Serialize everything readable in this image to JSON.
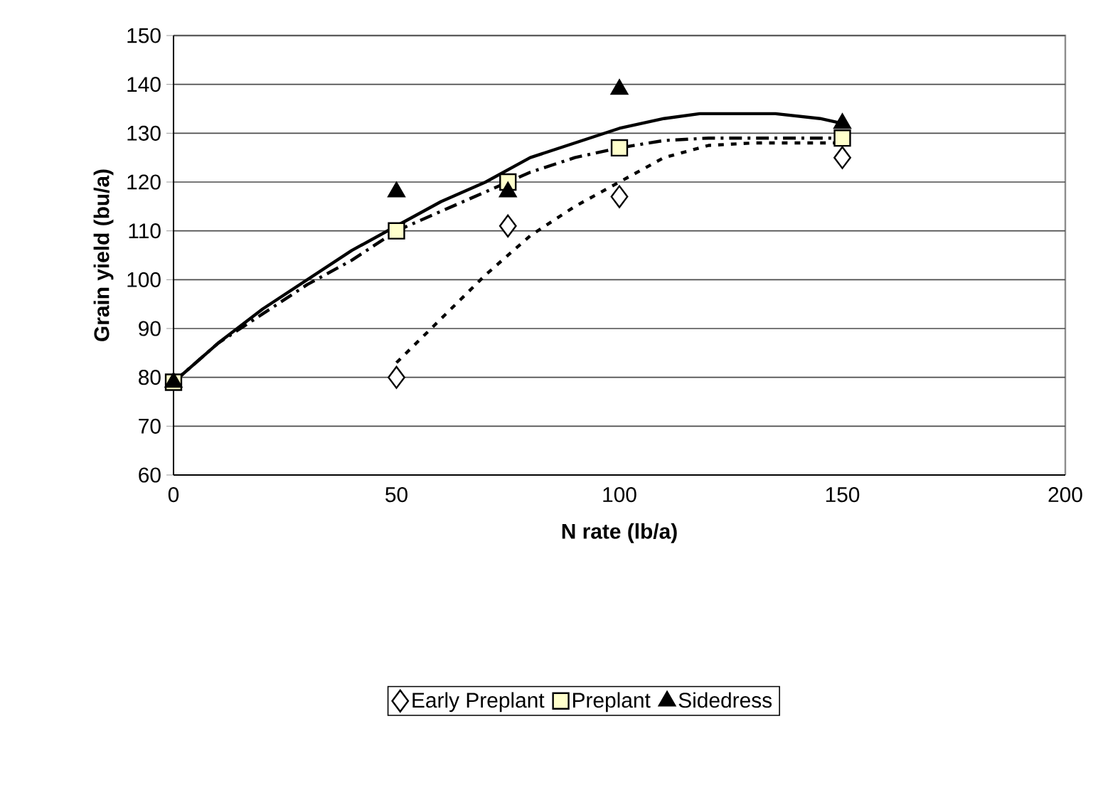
{
  "chart_data": {
    "type": "scatter",
    "xlabel": "N rate (lb/a)",
    "ylabel": "Grain yield (bu/a)",
    "xlim": [
      0,
      200
    ],
    "xticks": [
      0,
      50,
      100,
      150,
      200
    ],
    "ylim": [
      60,
      150
    ],
    "yticks": [
      60,
      70,
      80,
      90,
      100,
      110,
      120,
      130,
      140,
      150
    ],
    "grid": "y",
    "legend": "bottom",
    "series": [
      {
        "name": "Early Preplant",
        "marker": "diamond",
        "color": "#ffffff",
        "x": [
          50,
          75,
          100,
          150
        ],
        "values": [
          80,
          111,
          117,
          125
        ]
      },
      {
        "name": "Preplant",
        "marker": "square",
        "color": "#ffffcc",
        "x": [
          0,
          50,
          75,
          100,
          150
        ],
        "values": [
          79,
          110,
          120,
          127,
          129
        ]
      },
      {
        "name": "Sidedress",
        "marker": "triangle",
        "color": "#000000",
        "x": [
          0,
          50,
          75,
          100,
          150
        ],
        "values": [
          79,
          118,
          118,
          139,
          132
        ]
      },
      {
        "type": "line",
        "marker": "none",
        "line_style": "dotted",
        "color": "#000000",
        "x": [
          50,
          60,
          70,
          80,
          90,
          100,
          110,
          120,
          130,
          150
        ],
        "values": [
          83,
          92,
          101,
          109,
          115,
          120,
          125,
          127.5,
          128,
          128
        ]
      },
      {
        "type": "line",
        "marker": "none",
        "line_style": "dashed",
        "color": "#000000",
        "x": [
          0,
          10,
          20,
          30,
          40,
          50,
          60,
          70,
          80,
          90,
          100,
          110,
          120,
          150
        ],
        "values": [
          79,
          87,
          93,
          99,
          104,
          110,
          114,
          118,
          122,
          125,
          127,
          128.5,
          129,
          129
        ]
      },
      {
        "type": "line",
        "marker": "none",
        "line_style": "solid",
        "color": "#000000",
        "x": [
          0,
          10,
          20,
          30,
          40,
          50,
          60,
          70,
          80,
          90,
          100,
          110,
          118,
          135,
          145,
          150
        ],
        "values": [
          79,
          87,
          94,
          100,
          106,
          111,
          116,
          120,
          125,
          128,
          131,
          133,
          134,
          134,
          133,
          132
        ]
      }
    ]
  }
}
